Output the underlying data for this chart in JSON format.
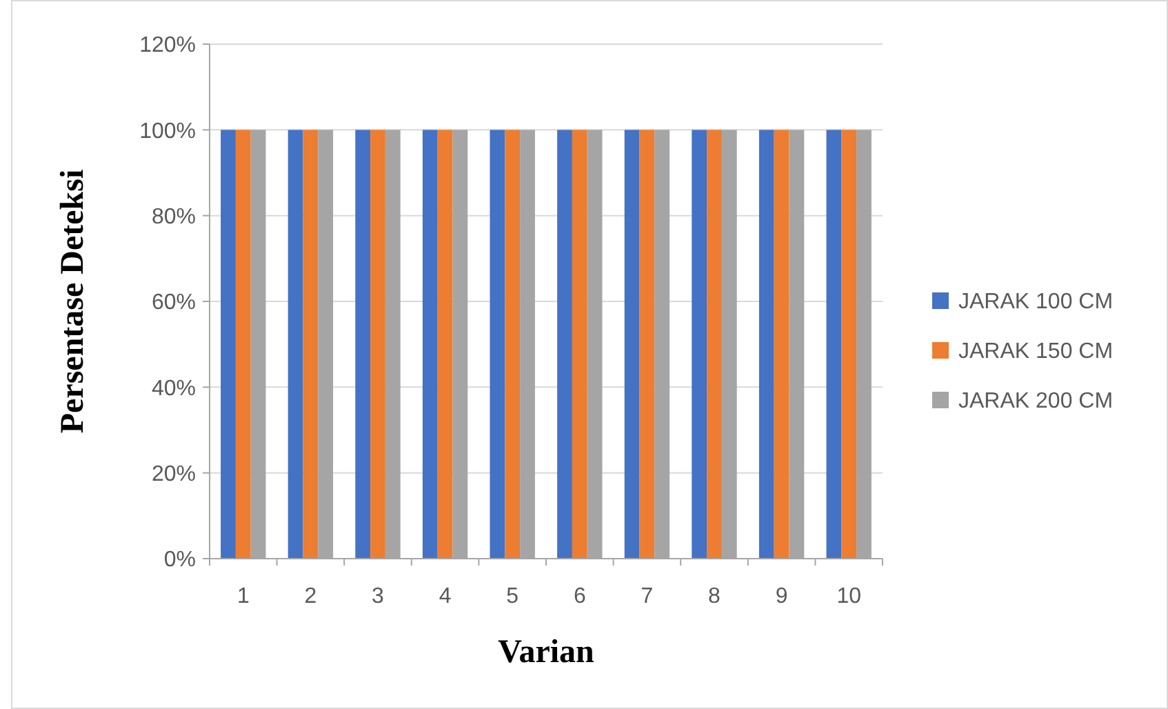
{
  "chart_data": {
    "type": "bar",
    "xlabel": "Varian",
    "ylabel": "Persentase Deteksi",
    "categories": [
      "1",
      "2",
      "3",
      "4",
      "5",
      "6",
      "7",
      "8",
      "9",
      "10"
    ],
    "series": [
      {
        "name": "JARAK 100 CM",
        "color": "#4472c4",
        "values": [
          100,
          100,
          100,
          100,
          100,
          100,
          100,
          100,
          100,
          100
        ]
      },
      {
        "name": "JARAK 150 CM",
        "color": "#ed7d31",
        "values": [
          100,
          100,
          100,
          100,
          100,
          100,
          100,
          100,
          100,
          100
        ]
      },
      {
        "name": "JARAK 200 CM",
        "color": "#a5a5a5",
        "values": [
          100,
          100,
          100,
          100,
          100,
          100,
          100,
          100,
          100,
          100
        ]
      }
    ],
    "ylim": [
      0,
      120
    ],
    "yticks": [
      {
        "value": 0,
        "label": "0%"
      },
      {
        "value": 20,
        "label": "20%"
      },
      {
        "value": 40,
        "label": "40%"
      },
      {
        "value": 60,
        "label": "60%"
      },
      {
        "value": 80,
        "label": "80%"
      },
      {
        "value": 100,
        "label": "100%"
      },
      {
        "value": 120,
        "label": "120%"
      }
    ],
    "grid": "y",
    "legend": "right"
  }
}
